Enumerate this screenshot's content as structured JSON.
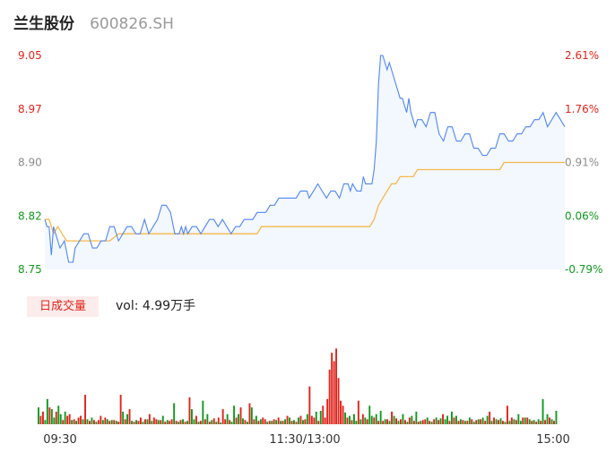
{
  "header": {
    "stock_name": "兰生股份",
    "stock_code": "600826.SH"
  },
  "volume_panel": {
    "tab_label": "日成交量",
    "volume_text": "vol: 4.99万手"
  },
  "colors": {
    "price_line": "#4f86f7",
    "price_fill": "#f3f7fe",
    "avg_line": "#f5b94a",
    "up": "#e2231a",
    "down": "#109a1e",
    "flat": "#8c8c8c"
  },
  "chart_data": [
    {
      "type": "line",
      "title": "",
      "xlabel": "",
      "ylabel": "",
      "ylim": [
        8.75,
        9.05
      ],
      "y_ticks": [
        "9.05",
        "8.97",
        "8.90",
        "8.82",
        "8.75"
      ],
      "y_ticks_right": [
        "2.61%",
        "1.76%",
        "0.91%",
        "0.06%",
        "-0.79%"
      ],
      "x_ticks": [
        "09:30",
        "11:30/13:00",
        "15:00"
      ],
      "minutes_total": 240,
      "series": [
        {
          "key": "price",
          "points": [
            [
              0,
              8.82
            ],
            [
              1,
              8.81
            ],
            [
              2,
              8.81
            ],
            [
              3,
              8.77
            ],
            [
              4,
              8.81
            ],
            [
              5,
              8.8
            ],
            [
              7,
              8.78
            ],
            [
              9,
              8.79
            ],
            [
              11,
              8.76
            ],
            [
              13,
              8.76
            ],
            [
              14,
              8.78
            ],
            [
              16,
              8.79
            ],
            [
              18,
              8.8
            ],
            [
              20,
              8.8
            ],
            [
              22,
              8.78
            ],
            [
              24,
              8.78
            ],
            [
              26,
              8.79
            ],
            [
              28,
              8.79
            ],
            [
              30,
              8.81
            ],
            [
              32,
              8.81
            ],
            [
              34,
              8.79
            ],
            [
              36,
              8.8
            ],
            [
              38,
              8.81
            ],
            [
              40,
              8.81
            ],
            [
              42,
              8.8
            ],
            [
              44,
              8.8
            ],
            [
              46,
              8.82
            ],
            [
              48,
              8.8
            ],
            [
              50,
              8.81
            ],
            [
              52,
              8.82
            ],
            [
              54,
              8.84
            ],
            [
              56,
              8.84
            ],
            [
              58,
              8.83
            ],
            [
              60,
              8.8
            ],
            [
              62,
              8.8
            ],
            [
              63,
              8.81
            ],
            [
              64,
              8.8
            ],
            [
              65,
              8.81
            ],
            [
              66,
              8.8
            ],
            [
              68,
              8.81
            ],
            [
              70,
              8.81
            ],
            [
              72,
              8.8
            ],
            [
              74,
              8.81
            ],
            [
              76,
              8.82
            ],
            [
              78,
              8.82
            ],
            [
              80,
              8.81
            ],
            [
              82,
              8.82
            ],
            [
              84,
              8.81
            ],
            [
              86,
              8.8
            ],
            [
              88,
              8.81
            ],
            [
              90,
              8.81
            ],
            [
              92,
              8.82
            ],
            [
              94,
              8.82
            ],
            [
              96,
              8.82
            ],
            [
              98,
              8.83
            ],
            [
              100,
              8.83
            ],
            [
              102,
              8.83
            ],
            [
              104,
              8.84
            ],
            [
              106,
              8.84
            ],
            [
              108,
              8.85
            ],
            [
              110,
              8.85
            ],
            [
              112,
              8.85
            ],
            [
              114,
              8.85
            ],
            [
              116,
              8.85
            ],
            [
              118,
              8.86
            ],
            [
              120,
              8.86
            ],
            [
              121,
              8.86
            ],
            [
              122,
              8.85
            ],
            [
              124,
              8.86
            ],
            [
              126,
              8.87
            ],
            [
              128,
              8.86
            ],
            [
              130,
              8.85
            ],
            [
              132,
              8.86
            ],
            [
              134,
              8.86
            ],
            [
              136,
              8.85
            ],
            [
              138,
              8.87
            ],
            [
              140,
              8.87
            ],
            [
              141,
              8.86
            ],
            [
              142,
              8.87
            ],
            [
              144,
              8.86
            ],
            [
              146,
              8.86
            ],
            [
              147,
              8.88
            ],
            [
              148,
              8.87
            ],
            [
              150,
              8.87
            ],
            [
              151,
              8.87
            ],
            [
              152,
              8.89
            ],
            [
              153,
              8.93
            ],
            [
              154,
              9.01
            ],
            [
              155,
              9.05
            ],
            [
              156,
              9.05
            ],
            [
              157,
              9.04
            ],
            [
              158,
              9.03
            ],
            [
              159,
              9.04
            ],
            [
              160,
              9.03
            ],
            [
              161,
              9.02
            ],
            [
              162,
              9.01
            ],
            [
              163,
              9.0
            ],
            [
              164,
              8.99
            ],
            [
              165,
              8.99
            ],
            [
              166,
              8.98
            ],
            [
              167,
              8.97
            ],
            [
              168,
              8.99
            ],
            [
              169,
              8.97
            ],
            [
              170,
              8.96
            ],
            [
              171,
              8.95
            ],
            [
              172,
              8.96
            ],
            [
              174,
              8.96
            ],
            [
              176,
              8.95
            ],
            [
              178,
              8.97
            ],
            [
              180,
              8.97
            ],
            [
              182,
              8.94
            ],
            [
              184,
              8.93
            ],
            [
              186,
              8.95
            ],
            [
              188,
              8.95
            ],
            [
              190,
              8.93
            ],
            [
              192,
              8.93
            ],
            [
              194,
              8.94
            ],
            [
              196,
              8.94
            ],
            [
              198,
              8.92
            ],
            [
              200,
              8.92
            ],
            [
              202,
              8.91
            ],
            [
              204,
              8.91
            ],
            [
              206,
              8.92
            ],
            [
              208,
              8.92
            ],
            [
              210,
              8.94
            ],
            [
              212,
              8.94
            ],
            [
              214,
              8.93
            ],
            [
              216,
              8.93
            ],
            [
              218,
              8.94
            ],
            [
              220,
              8.94
            ],
            [
              222,
              8.95
            ],
            [
              224,
              8.95
            ],
            [
              226,
              8.96
            ],
            [
              228,
              8.96
            ],
            [
              230,
              8.97
            ],
            [
              232,
              8.95
            ],
            [
              234,
              8.96
            ],
            [
              236,
              8.97
            ],
            [
              238,
              8.96
            ],
            [
              240,
              8.95
            ]
          ]
        },
        {
          "key": "avg",
          "points": [
            [
              0,
              8.82
            ],
            [
              2,
              8.82
            ],
            [
              3,
              8.81
            ],
            [
              4,
              8.8
            ],
            [
              6,
              8.81
            ],
            [
              8,
              8.8
            ],
            [
              10,
              8.79
            ],
            [
              30,
              8.79
            ],
            [
              34,
              8.8
            ],
            [
              56,
              8.8
            ],
            [
              98,
              8.8
            ],
            [
              100,
              8.81
            ],
            [
              150,
              8.81
            ],
            [
              152,
              8.82
            ],
            [
              154,
              8.84
            ],
            [
              156,
              8.85
            ],
            [
              160,
              8.87
            ],
            [
              162,
              8.87
            ],
            [
              164,
              8.88
            ],
            [
              170,
              8.88
            ],
            [
              172,
              8.89
            ],
            [
              200,
              8.89
            ],
            [
              210,
              8.89
            ],
            [
              212,
              8.9
            ],
            [
              240,
              8.9
            ]
          ]
        }
      ]
    },
    {
      "type": "bar",
      "title": "",
      "categories_unit": "minute",
      "ylim": [
        0,
        100
      ],
      "values": [
        20,
        10,
        15,
        5,
        30,
        20,
        18,
        8,
        15,
        22,
        12,
        5,
        15,
        10,
        12,
        5,
        6,
        4,
        8,
        10,
        6,
        35,
        6,
        4,
        8,
        5,
        3,
        5,
        10,
        5,
        8,
        6,
        4,
        5,
        5,
        4,
        3,
        35,
        15,
        6,
        12,
        18,
        4,
        3,
        5,
        4,
        8,
        3,
        6,
        6,
        12,
        4,
        8,
        6,
        5,
        5,
        10,
        3,
        5,
        4,
        6,
        25,
        4,
        3,
        5,
        6,
        3,
        4,
        32,
        18,
        6,
        10,
        3,
        4,
        28,
        6,
        12,
        3,
        5,
        7,
        3,
        8,
        2,
        18,
        6,
        12,
        5,
        3,
        22,
        8,
        12,
        20,
        7,
        5,
        3,
        25,
        20,
        6,
        10,
        4,
        6,
        8,
        6,
        3,
        4,
        4,
        6,
        5,
        8,
        4,
        4,
        6,
        10,
        8,
        4,
        5,
        3,
        8,
        10,
        5,
        6,
        12,
        45,
        10,
        8,
        15,
        4,
        16,
        22,
        8,
        30,
        65,
        85,
        75,
        90,
        55,
        28,
        22,
        14,
        8,
        10,
        5,
        12,
        4,
        28,
        6,
        12,
        8,
        6,
        22,
        10,
        8,
        12,
        4,
        16,
        4,
        6,
        6,
        4,
        15,
        10,
        7,
        4,
        6,
        12,
        5,
        3,
        8,
        10,
        4,
        15,
        3,
        4,
        5,
        6,
        8,
        4,
        3,
        6,
        8,
        5,
        7,
        12,
        6,
        10,
        4,
        15,
        8,
        10,
        4,
        6,
        5,
        4,
        4,
        8,
        6,
        3,
        5,
        6,
        6,
        8,
        4,
        10,
        15,
        4,
        8,
        6,
        5,
        7,
        4,
        3,
        22,
        4,
        8,
        6,
        5,
        12,
        4,
        8,
        8,
        8,
        6,
        4,
        5,
        3,
        6,
        4,
        30,
        5,
        12,
        8,
        6,
        4,
        16
      ],
      "directions": [
        "d",
        "u",
        "u",
        "d",
        "d",
        "u",
        "d",
        "d",
        "u",
        "d",
        "d",
        "u",
        "d",
        "u",
        "u",
        "d",
        "u",
        "d",
        "u",
        "u",
        "d",
        "u",
        "d",
        "u",
        "d",
        "u",
        "d",
        "u",
        "u",
        "d",
        "u",
        "d",
        "u",
        "d",
        "u",
        "d",
        "u",
        "u",
        "d",
        "u",
        "d",
        "u",
        "d",
        "u",
        "d",
        "u",
        "u",
        "d",
        "u",
        "d",
        "u",
        "d",
        "u",
        "u",
        "d",
        "u",
        "d",
        "u",
        "d",
        "u",
        "u",
        "d",
        "u",
        "d",
        "u",
        "d",
        "u",
        "d",
        "u",
        "d",
        "d",
        "u",
        "d",
        "u",
        "d",
        "u",
        "d",
        "u",
        "d",
        "u",
        "d",
        "u",
        "d",
        "u",
        "u",
        "d",
        "u",
        "d",
        "d",
        "u",
        "d",
        "u",
        "d",
        "u",
        "d",
        "u",
        "d",
        "u",
        "d",
        "u",
        "d",
        "u",
        "u",
        "d",
        "u",
        "d",
        "u",
        "d",
        "u",
        "d",
        "u",
        "d",
        "u",
        "d",
        "u",
        "d",
        "u",
        "d",
        "u",
        "d",
        "u",
        "d",
        "u",
        "u",
        "u",
        "d",
        "u",
        "d",
        "u",
        "u",
        "u",
        "u",
        "u",
        "u",
        "u",
        "u",
        "u",
        "u",
        "d",
        "u",
        "d",
        "u",
        "d",
        "d",
        "u",
        "d",
        "u",
        "d",
        "u",
        "d",
        "d",
        "u",
        "d",
        "u",
        "d",
        "u",
        "d",
        "u",
        "d",
        "u",
        "d",
        "u",
        "d",
        "u",
        "d",
        "u",
        "d",
        "u",
        "d",
        "u",
        "d",
        "u",
        "d",
        "u",
        "u",
        "d",
        "u",
        "d",
        "u",
        "d",
        "u",
        "d",
        "u",
        "d",
        "d",
        "u",
        "d",
        "u",
        "d",
        "u",
        "d",
        "u",
        "d",
        "u",
        "d",
        "u",
        "d",
        "u",
        "d",
        "u",
        "d",
        "u",
        "d",
        "u",
        "d",
        "u",
        "d",
        "u",
        "d",
        "u",
        "d",
        "u",
        "d",
        "u",
        "d",
        "u",
        "d",
        "d",
        "u",
        "d",
        "u",
        "d",
        "u",
        "d",
        "u",
        "d",
        "u",
        "d",
        "u",
        "d",
        "u",
        "d",
        "u",
        "d",
        "u",
        "u"
      ]
    }
  ]
}
